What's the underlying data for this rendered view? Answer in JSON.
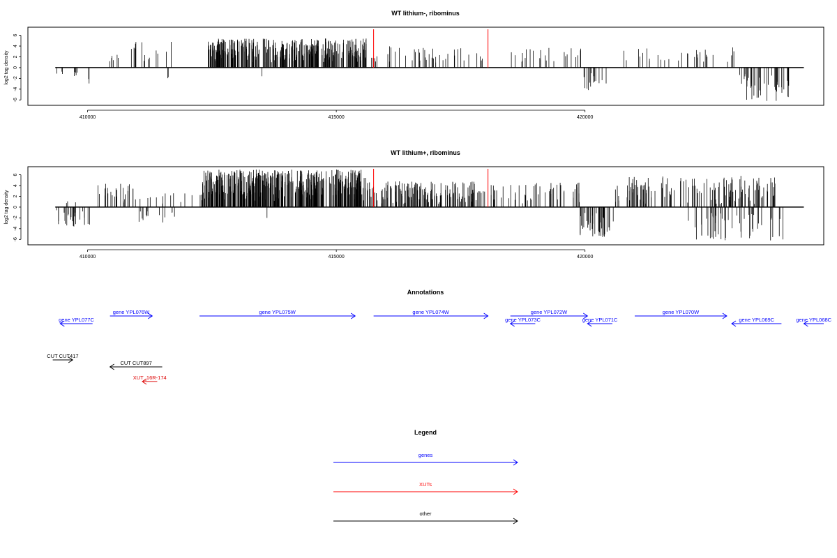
{
  "panels": [
    {
      "title": "WT lithium-, ribominus",
      "ylabel": "log2 tag density",
      "xticks": [
        410000,
        415000,
        420000
      ],
      "yticks": [
        -6,
        -4,
        -2,
        0,
        2,
        4,
        6
      ],
      "xlim": [
        408800,
        424800
      ],
      "ylim": [
        -7,
        7.5
      ],
      "red_marks": [
        415750,
        418050
      ],
      "chart_data": {
        "type": "bar",
        "title": "WT lithium-, ribominus",
        "xlabel": "",
        "ylabel": "log2 tag density",
        "xlim": [
          408800,
          424800
        ],
        "ylim": [
          -7,
          7.5
        ],
        "grid": false,
        "segments": [
          {
            "range": [
              409350,
              409900
            ],
            "n": 8,
            "sign": -1,
            "min": 0.4,
            "max": 1.8
          },
          {
            "range": [
              409980,
              410040
            ],
            "n": 2,
            "sign": -1,
            "min": 2.0,
            "max": 3.0
          },
          {
            "range": [
              410350,
              410650
            ],
            "n": 6,
            "sign": 1,
            "min": 1.0,
            "max": 2.5
          },
          {
            "range": [
              410850,
              411700
            ],
            "n": 14,
            "sign": 1,
            "min": 0.8,
            "max": 4.8
          },
          {
            "range": [
              411500,
              411700
            ],
            "n": 2,
            "sign": -1,
            "min": 1.5,
            "max": 2.8
          },
          {
            "range": [
              412420,
              415600
            ],
            "n": 340,
            "sign": 1,
            "min": 1.0,
            "max": 5.4
          },
          {
            "range": [
              413500,
              413520
            ],
            "n": 1,
            "sign": -1,
            "min": 1.6,
            "max": 1.6
          },
          {
            "range": [
              415600,
              418000
            ],
            "n": 42,
            "sign": 1,
            "min": 0.6,
            "max": 4.0
          },
          {
            "range": [
              418500,
              419950
            ],
            "n": 24,
            "sign": 1,
            "min": 0.6,
            "max": 3.7
          },
          {
            "range": [
              419950,
              420500
            ],
            "n": 14,
            "sign": -1,
            "min": 1.0,
            "max": 4.2
          },
          {
            "range": [
              420700,
              423000
            ],
            "n": 30,
            "sign": 1,
            "min": 1.0,
            "max": 3.8
          },
          {
            "range": [
              423100,
              424100
            ],
            "n": 40,
            "sign": -1,
            "min": 1.0,
            "max": 6.2
          }
        ]
      }
    },
    {
      "title": "WT lithium+, ribominus",
      "ylabel": "log2 tag density",
      "xticks": [
        410000,
        415000,
        420000
      ],
      "yticks": [
        -6,
        -4,
        -2,
        0,
        2,
        4,
        6
      ],
      "xlim": [
        408800,
        424800
      ],
      "ylim": [
        -7,
        7.5
      ],
      "red_marks": [
        415750,
        418050
      ],
      "chart_data": {
        "type": "bar",
        "title": "WT lithium+, ribominus",
        "xlabel": "",
        "ylabel": "log2 tag density",
        "xlim": [
          408800,
          424800
        ],
        "ylim": [
          -7,
          7.5
        ],
        "grid": false,
        "segments": [
          {
            "range": [
              409350,
              410050
            ],
            "n": 24,
            "sign": -1,
            "min": 0.5,
            "max": 3.6
          },
          {
            "range": [
              409450,
              409800
            ],
            "n": 3,
            "sign": 1,
            "min": 0.5,
            "max": 1.3
          },
          {
            "range": [
              410200,
              411100
            ],
            "n": 28,
            "sign": 1,
            "min": 0.5,
            "max": 4.6
          },
          {
            "range": [
              411000,
              411750
            ],
            "n": 14,
            "sign": -1,
            "min": 0.6,
            "max": 3.0
          },
          {
            "range": [
              411200,
              412300
            ],
            "n": 14,
            "sign": 1,
            "min": 0.5,
            "max": 2.6
          },
          {
            "range": [
              412300,
              415600
            ],
            "n": 440,
            "sign": 1,
            "min": 1.0,
            "max": 7.0
          },
          {
            "range": [
              413600,
              413620
            ],
            "n": 1,
            "sign": -1,
            "min": 2.0,
            "max": 2.0
          },
          {
            "range": [
              415600,
              418000
            ],
            "n": 160,
            "sign": 1,
            "min": 0.5,
            "max": 4.8
          },
          {
            "range": [
              418000,
              419950
            ],
            "n": 50,
            "sign": 1,
            "min": 0.5,
            "max": 4.6
          },
          {
            "range": [
              419900,
              420600
            ],
            "n": 40,
            "sign": -1,
            "min": 1.0,
            "max": 5.6
          },
          {
            "range": [
              420600,
              423900
            ],
            "n": 140,
            "sign": 1,
            "min": 0.5,
            "max": 5.8
          },
          {
            "range": [
              422000,
              424000
            ],
            "n": 50,
            "sign": -1,
            "min": 1.0,
            "max": 6.2
          }
        ]
      }
    }
  ],
  "annotations": {
    "title": "Annotations",
    "features": [
      {
        "label": "gene YPL077C",
        "type": "gene",
        "strand": "-",
        "start": 409450,
        "end": 410100,
        "row": 2
      },
      {
        "label": "gene YPL076W",
        "type": "gene",
        "strand": "+",
        "start": 410450,
        "end": 411300,
        "row": 1
      },
      {
        "label": "gene YPL075W",
        "type": "gene",
        "strand": "+",
        "start": 412250,
        "end": 415380,
        "row": 1
      },
      {
        "label": "gene YPL074W",
        "type": "gene",
        "strand": "+",
        "start": 415750,
        "end": 418050,
        "row": 1
      },
      {
        "label": "gene YPL072W",
        "type": "gene",
        "strand": "+",
        "start": 418500,
        "end": 420050,
        "row": 1
      },
      {
        "label": "gene YPL073C",
        "type": "gene",
        "strand": "-",
        "start": 418500,
        "end": 419000,
        "row": 2
      },
      {
        "label": "gene YPL071C",
        "type": "gene",
        "strand": "-",
        "start": 420050,
        "end": 420550,
        "row": 2
      },
      {
        "label": "gene YPL070W",
        "type": "gene",
        "strand": "+",
        "start": 421000,
        "end": 422850,
        "row": 1
      },
      {
        "label": "gene YPL069C",
        "type": "gene",
        "strand": "-",
        "start": 422950,
        "end": 423950,
        "row": 2
      },
      {
        "label": "gene YPL068C",
        "type": "gene",
        "strand": "-",
        "start": 424400,
        "end": 424800,
        "row": 2
      },
      {
        "label": "CUT CUT417",
        "type": "other",
        "strand": "+",
        "start": 409300,
        "end": 409700,
        "row": 3
      },
      {
        "label": "CUT CUT897",
        "type": "other",
        "strand": "-",
        "start": 410450,
        "end": 411500,
        "row": 4
      },
      {
        "label": "XUT_16R-174",
        "type": "xut",
        "strand": "-",
        "start": 411100,
        "end": 411400,
        "row": 5
      }
    ]
  },
  "legend": {
    "title": "Legend",
    "items": [
      {
        "label": "genes",
        "color": "#0000ff"
      },
      {
        "label": "XUTs",
        "color": "#ff0000"
      },
      {
        "label": "other",
        "color": "#000000"
      }
    ]
  },
  "colors": {
    "gene": "#0000ff",
    "xut": "#dd0000",
    "other": "#000000",
    "mark": "#ff0000",
    "bars": "#000000"
  }
}
